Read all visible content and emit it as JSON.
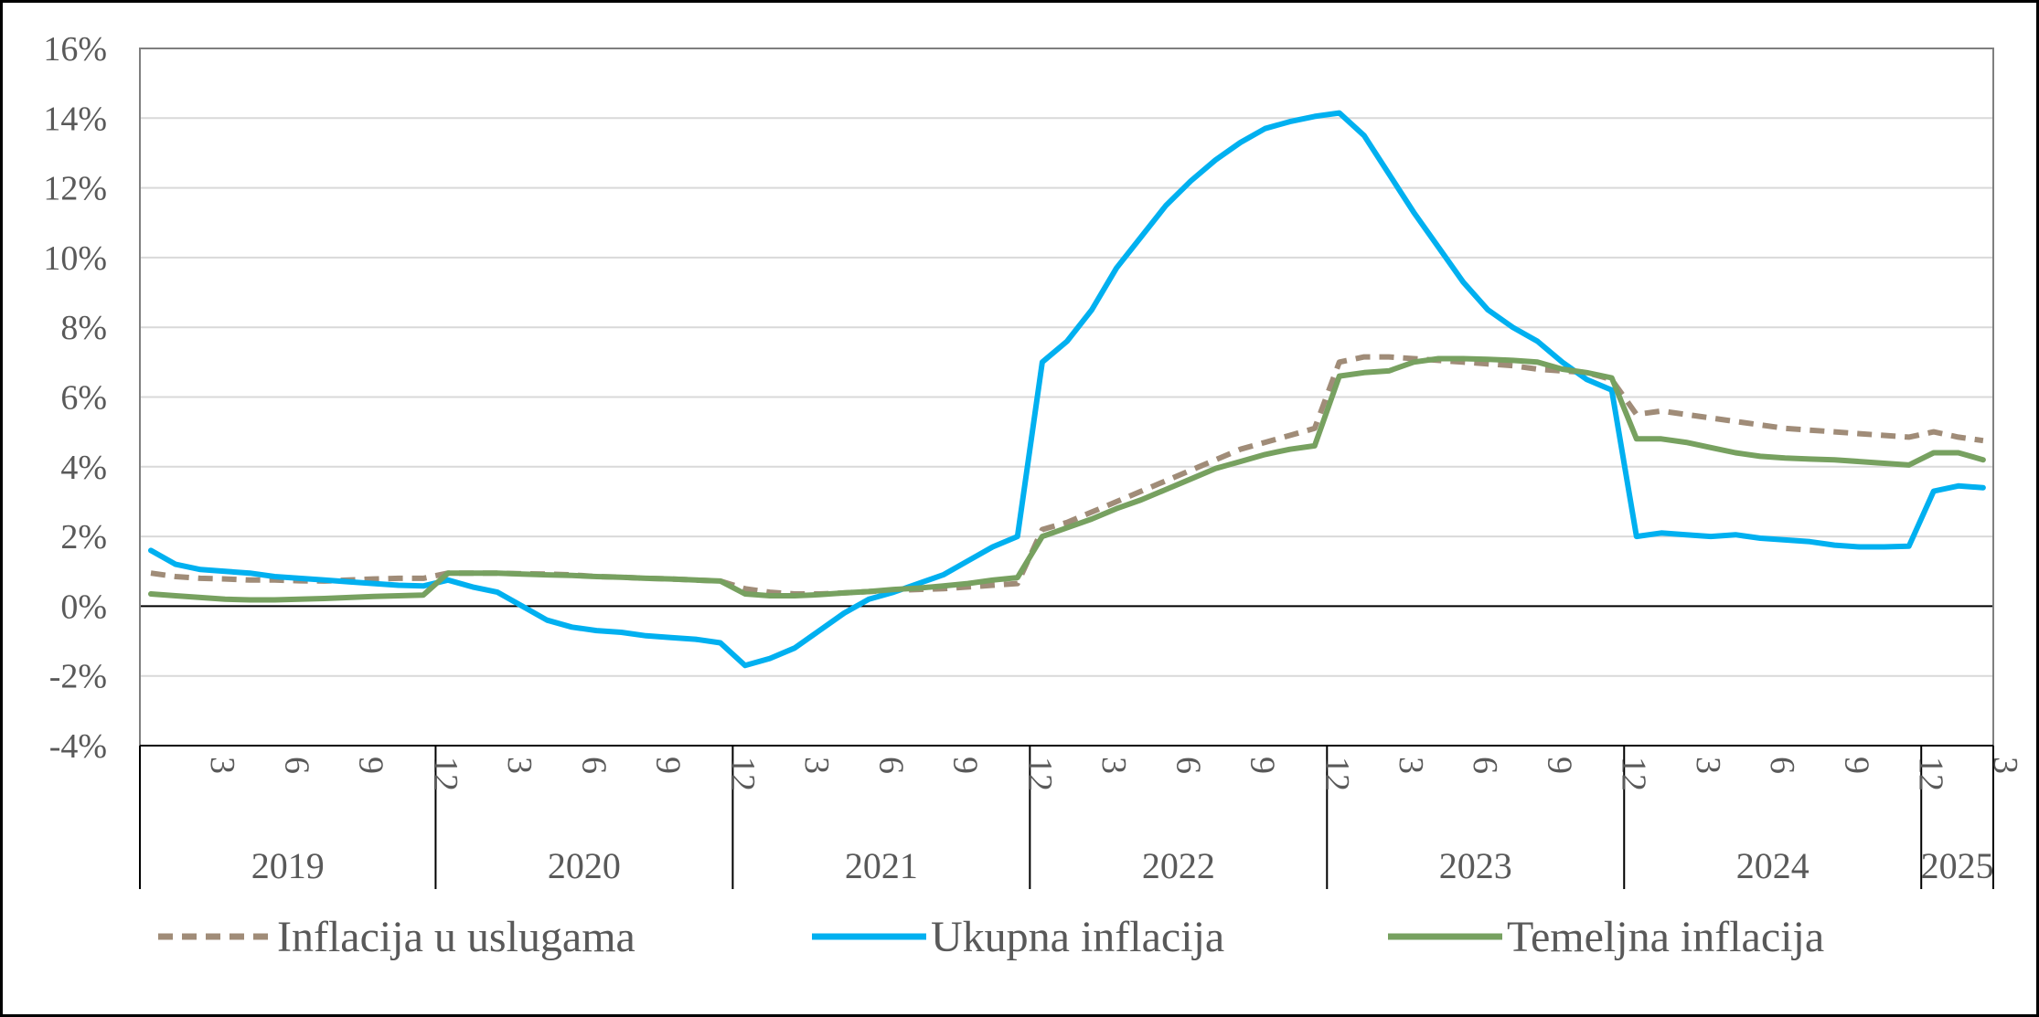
{
  "chart_data": {
    "type": "line",
    "title": "",
    "xlabel": "",
    "ylabel": "",
    "ylim": [
      -4,
      16
    ],
    "yticks": [
      -4,
      -2,
      0,
      2,
      4,
      6,
      8,
      10,
      12,
      14,
      16
    ],
    "ytick_labels": [
      "-4%",
      "-2%",
      "0%",
      "2%",
      "4%",
      "6%",
      "8%",
      "10%",
      "12%",
      "14%",
      "16%"
    ],
    "grid": true,
    "legend_position": "bottom",
    "start_month": "2019-01",
    "month_ticks": [
      "3",
      "6",
      "9",
      "12"
    ],
    "years": [
      "2019",
      "2020",
      "2021",
      "2022",
      "2023",
      "2024",
      "2025"
    ],
    "series": [
      {
        "name": "Inflacija u uslugama",
        "color": "#A08C78",
        "style": "dashed",
        "values": [
          0.95,
          0.85,
          0.8,
          0.78,
          0.75,
          0.75,
          0.73,
          0.72,
          0.75,
          0.78,
          0.8,
          0.8,
          0.95,
          0.95,
          0.95,
          0.93,
          0.92,
          0.9,
          0.85,
          0.83,
          0.8,
          0.78,
          0.75,
          0.72,
          0.5,
          0.4,
          0.35,
          0.35,
          0.38,
          0.42,
          0.45,
          0.48,
          0.5,
          0.55,
          0.6,
          0.65,
          2.2,
          2.4,
          2.7,
          3.0,
          3.3,
          3.6,
          3.9,
          4.2,
          4.5,
          4.7,
          4.9,
          5.1,
          7.0,
          7.15,
          7.15,
          7.1,
          7.05,
          7.0,
          6.95,
          6.9,
          6.8,
          6.75,
          6.7,
          6.5,
          5.5,
          5.6,
          5.5,
          5.4,
          5.3,
          5.2,
          5.1,
          5.05,
          5.0,
          4.95,
          4.9,
          4.85,
          5.0,
          4.85,
          4.75
        ]
      },
      {
        "name": "Ukupna inflacija",
        "color": "#00B0F0",
        "style": "solid",
        "values": [
          1.6,
          1.2,
          1.05,
          1.0,
          0.95,
          0.85,
          0.8,
          0.75,
          0.7,
          0.65,
          0.6,
          0.58,
          0.75,
          0.55,
          0.4,
          0.0,
          -0.4,
          -0.6,
          -0.7,
          -0.75,
          -0.85,
          -0.9,
          -0.95,
          -1.05,
          -1.7,
          -1.5,
          -1.2,
          -0.7,
          -0.2,
          0.2,
          0.4,
          0.65,
          0.9,
          1.3,
          1.7,
          2.0,
          7.0,
          7.6,
          8.5,
          9.7,
          10.6,
          11.5,
          12.2,
          12.8,
          13.3,
          13.7,
          13.9,
          14.05,
          14.15,
          13.5,
          12.4,
          11.3,
          10.3,
          9.3,
          8.5,
          8.0,
          7.6,
          7.0,
          6.5,
          6.2,
          2.0,
          2.1,
          2.05,
          2.0,
          2.05,
          1.95,
          1.9,
          1.85,
          1.75,
          1.7,
          1.7,
          1.72,
          3.3,
          3.45,
          3.4
        ]
      },
      {
        "name": "Temeljna inflacija",
        "color": "#77A160",
        "style": "solid",
        "values": [
          0.35,
          0.3,
          0.25,
          0.2,
          0.18,
          0.18,
          0.2,
          0.22,
          0.25,
          0.28,
          0.3,
          0.32,
          0.95,
          0.95,
          0.95,
          0.92,
          0.9,
          0.88,
          0.85,
          0.83,
          0.8,
          0.78,
          0.75,
          0.72,
          0.35,
          0.3,
          0.3,
          0.33,
          0.38,
          0.42,
          0.48,
          0.52,
          0.58,
          0.65,
          0.75,
          0.82,
          2.0,
          2.25,
          2.5,
          2.8,
          3.05,
          3.35,
          3.65,
          3.95,
          4.15,
          4.35,
          4.5,
          4.6,
          6.6,
          6.7,
          6.75,
          7.0,
          7.1,
          7.1,
          7.08,
          7.05,
          7.0,
          6.8,
          6.7,
          6.55,
          4.8,
          4.8,
          4.7,
          4.55,
          4.4,
          4.3,
          4.25,
          4.22,
          4.2,
          4.15,
          4.1,
          4.05,
          4.4,
          4.4,
          4.2
        ]
      }
    ]
  }
}
